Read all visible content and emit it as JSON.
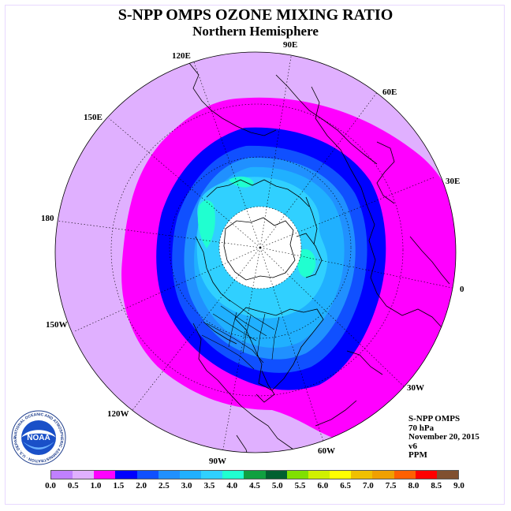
{
  "header": {
    "title": "S-NPP OMPS OZONE MIXING RATIO",
    "subtitle": "Northern Hemisphere"
  },
  "longitude_labels": [
    "0",
    "30E",
    "60E",
    "90E",
    "120E",
    "150E",
    "180",
    "150W",
    "120W",
    "90W",
    "60W",
    "30W"
  ],
  "info": {
    "instrument": "S-NPP OMPS",
    "pressure": "70 hPa",
    "date": "November 20, 2015",
    "version": "v6",
    "units": "PPM"
  },
  "logo": {
    "text": "NOAA",
    "ring_text": "NATIONAL OCEANIC AND ATMOSPHERIC ADMINISTRATION · U.S. DEPARTMENT OF COMMERCE"
  },
  "colorbar": {
    "ticks": [
      "0.0",
      "0.5",
      "1.0",
      "1.5",
      "2.0",
      "2.5",
      "3.0",
      "3.5",
      "4.0",
      "4.5",
      "5.0",
      "5.5",
      "6.0",
      "6.5",
      "7.0",
      "7.5",
      "8.0",
      "8.5",
      "9.0"
    ],
    "colors": [
      "#c080ff",
      "#e0b0ff",
      "#ff00ff",
      "#0000ff",
      "#1050ff",
      "#2090ff",
      "#20b0ff",
      "#30d0ff",
      "#20ffd0",
      "#10a040",
      "#006030",
      "#80e000",
      "#d0f000",
      "#ffff00",
      "#f0c000",
      "#f0a000",
      "#ff6000",
      "#ff0000",
      "#805030"
    ]
  },
  "colors": {
    "level_1_0": "#e0b0ff",
    "level_1_5": "#ff00ff",
    "level_2_0": "#0000ff",
    "level_2_5": "#1050ff",
    "level_3_0": "#2090ff",
    "level_3_5": "#20b0ff",
    "level_4_0": "#30d0ff",
    "level_4_5": "#20ffd0",
    "polar_night": "#ffffff"
  }
}
